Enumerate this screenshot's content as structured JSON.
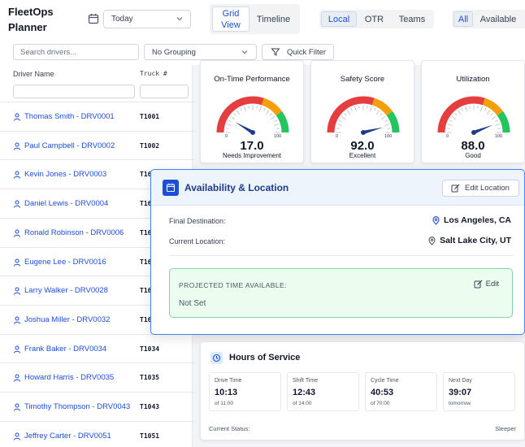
{
  "header": {
    "title_line1": "FleetOps",
    "title_line2": "Planner",
    "date_value": "Today",
    "view_tabs": [
      {
        "label": "Grid View",
        "active": true
      },
      {
        "label": "Timeline",
        "active": false
      }
    ],
    "region_tabs": [
      {
        "label": "Local",
        "active": true
      },
      {
        "label": "OTR",
        "active": false
      },
      {
        "label": "Teams",
        "active": false
      }
    ],
    "status_tabs": [
      {
        "label": "All",
        "active": true
      },
      {
        "label": "Available",
        "active": false
      }
    ]
  },
  "toolbar": {
    "search_placeholder": "Search drivers...",
    "grouping_value": "No Grouping",
    "quick_filter_label": "Quick Filter"
  },
  "table": {
    "col_driver": "Driver Name",
    "col_truck": "Truck #",
    "rows": [
      {
        "driver": "Thomas Smith - DRV0001",
        "truck": "T1001"
      },
      {
        "driver": "Paul Campbell - DRV0002",
        "truck": "T1002"
      },
      {
        "driver": "Kevin Jones - DRV0003",
        "truck": "T16"
      },
      {
        "driver": "Daniel Lewis - DRV0004",
        "truck": "T16"
      },
      {
        "driver": "Ronald Robinson - DRV0006",
        "truck": "T16"
      },
      {
        "driver": "Eugene Lee - DRV0016",
        "truck": "T16"
      },
      {
        "driver": "Larry Walker - DRV0028",
        "truck": "T16"
      },
      {
        "driver": "Joshua Miller - DRV0032",
        "truck": "T16"
      },
      {
        "driver": "Frank Baker - DRV0034",
        "truck": "T1034"
      },
      {
        "driver": "Howard Harris - DRV0035",
        "truck": "T1035"
      },
      {
        "driver": "Timothy Thompson - DRV0043",
        "truck": "T1043"
      },
      {
        "driver": "Jeffrey Carter - DRV0051",
        "truck": "T1051"
      }
    ]
  },
  "metrics": [
    {
      "title": "On-Time Performance",
      "value": "17.0",
      "value_num": 17,
      "label": "Needs Improvement"
    },
    {
      "title": "Safety Score",
      "value": "92.0",
      "value_num": 92,
      "label": "Excellent"
    },
    {
      "title": "Utilization",
      "value": "88.0",
      "value_num": 88,
      "label": "Good"
    }
  ],
  "gauge_ticks": [
    "0",
    "100"
  ],
  "availability": {
    "title": "Availability & Location",
    "edit_location_label": "Edit Location",
    "final_destination_label": "Final Destination:",
    "final_destination_value": "Los Angeles, CA",
    "current_location_label": "Current Location:",
    "current_location_value": "Salt Lake City, UT",
    "projected_label": "PROJECTED TIME AVAILABLE:",
    "projected_value": "Not Set",
    "projected_edit_label": "Edit"
  },
  "hos": {
    "title": "Hours of Service",
    "items": [
      {
        "label": "Drive Time",
        "value": "10:13",
        "sub": "of 11:00"
      },
      {
        "label": "Shift Time",
        "value": "12:43",
        "sub": "of 14:00"
      },
      {
        "label": "Cycle Time",
        "value": "40:53",
        "sub": "of 70:00"
      },
      {
        "label": "Next Day",
        "value": "39:07",
        "sub": "tomorrow"
      }
    ],
    "status_label": "Current Status:",
    "status_value": "Sleeper"
  },
  "colors": {
    "accent": "#1d4ed8",
    "gauge_red": "#e53e3e",
    "gauge_orange": "#f59e0b",
    "gauge_green": "#22c55e",
    "needle": "#1e3a8a"
  }
}
